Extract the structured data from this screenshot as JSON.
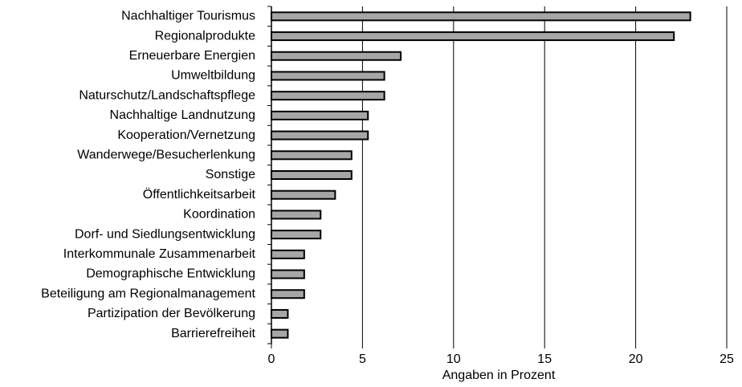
{
  "chart_data": {
    "type": "bar",
    "orientation": "horizontal",
    "x_label": "Angaben in Prozent",
    "categories": [
      "Nachhaltiger Tourismus",
      "Regionalprodukte",
      "Erneuerbare Energien",
      "Umweltbildung",
      "Naturschutz/Landschaftspflege",
      "Nachhaltige Landnutzung",
      "Kooperation/Vernetzung",
      "Wanderwege/Besucherlenkung",
      "Sonstige",
      "Öffentlichkeitsarbeit",
      "Koordination",
      "Dorf- und Siedlungsentwicklung",
      "Interkommunale Zusammenarbeit",
      "Demographische Entwicklung",
      "Beteiligung am Regionalmanagement",
      "Partizipation der Bevölkerung",
      "Barrierefreiheit"
    ],
    "values": [
      23,
      22.1,
      7.1,
      6.2,
      6.2,
      5.3,
      5.3,
      4.4,
      4.4,
      3.5,
      2.7,
      2.7,
      1.8,
      1.8,
      1.8,
      0.9,
      0.9
    ],
    "color": "#a6a6a6",
    "xlim": [
      0,
      25
    ],
    "xticks": [
      0,
      5,
      10,
      15,
      20,
      25
    ],
    "grid": true
  }
}
